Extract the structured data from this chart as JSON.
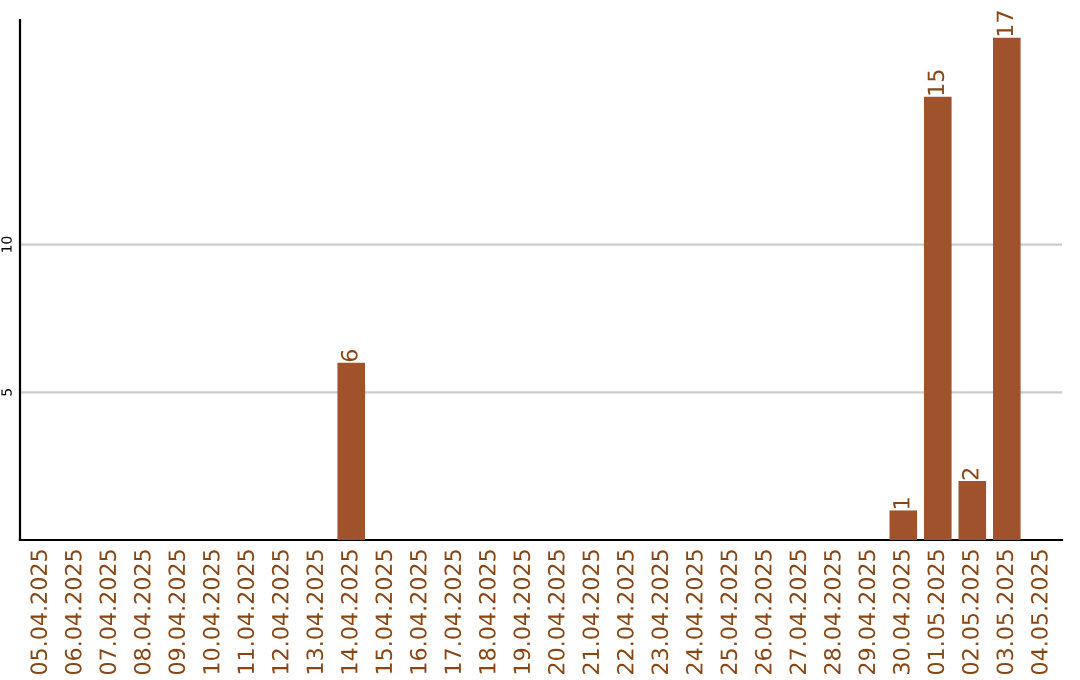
{
  "chart_data": {
    "type": "bar",
    "categories": [
      "05.04.2025",
      "06.04.2025",
      "07.04.2025",
      "08.04.2025",
      "09.04.2025",
      "10.04.2025",
      "11.04.2025",
      "12.04.2025",
      "13.04.2025",
      "14.04.2025",
      "15.04.2025",
      "16.04.2025",
      "17.04.2025",
      "18.04.2025",
      "19.04.2025",
      "20.04.2025",
      "21.04.2025",
      "22.04.2025",
      "23.04.2025",
      "24.04.2025",
      "25.04.2025",
      "26.04.2025",
      "27.04.2025",
      "28.04.2025",
      "29.04.2025",
      "30.04.2025",
      "01.05.2025",
      "02.05.2025",
      "03.05.2025",
      "04.05.2025"
    ],
    "values": [
      0,
      0,
      0,
      0,
      0,
      0,
      0,
      0,
      0,
      6,
      0,
      0,
      0,
      0,
      0,
      0,
      0,
      0,
      0,
      0,
      0,
      0,
      0,
      0,
      0,
      1,
      15,
      2,
      17,
      0
    ],
    "color": "#a0522d",
    "ylim": [
      0,
      17.6
    ],
    "yticks": [
      5,
      10
    ],
    "grid": "y",
    "value_labels": [
      null,
      null,
      null,
      null,
      null,
      null,
      null,
      null,
      null,
      "6",
      null,
      null,
      null,
      null,
      null,
      null,
      null,
      null,
      null,
      null,
      null,
      null,
      null,
      null,
      null,
      "1",
      "15",
      "2",
      "17",
      null
    ]
  }
}
